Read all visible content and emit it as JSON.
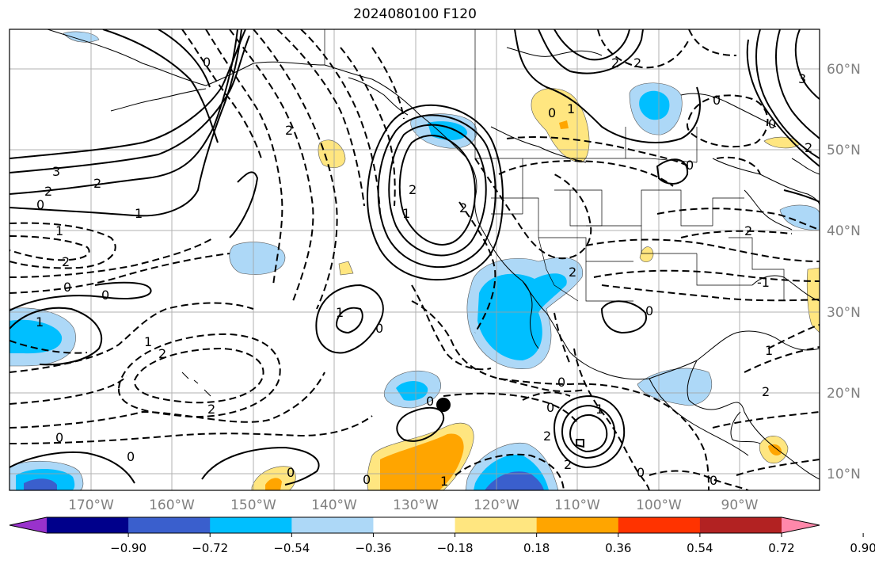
{
  "title": "2024080100 F120",
  "lat_labels": [
    "60°N",
    "50°N",
    "40°N",
    "30°N",
    "20°N",
    "10°N"
  ],
  "lon_labels": [
    "170°W",
    "160°W",
    "150°W",
    "140°W",
    "130°W",
    "120°W",
    "110°W",
    "100°W",
    "90°W"
  ],
  "colorbar": {
    "ticks": [
      "−0.90",
      "−0.72",
      "−0.54",
      "−0.36",
      "−0.18",
      "0.18",
      "0.36",
      "0.54",
      "0.72",
      "0.90"
    ],
    "colors": [
      "#9932cc",
      "#00008b",
      "#3a5fcd",
      "#00bfff",
      "#add8f7",
      "#ffffff",
      "#ffe680",
      "#ffa500",
      "#ff3300",
      "#b22222",
      "#ff88aa"
    ]
  },
  "contour_labels": [
    "0",
    "1",
    "2",
    "3",
    "-1",
    "-2"
  ]
}
